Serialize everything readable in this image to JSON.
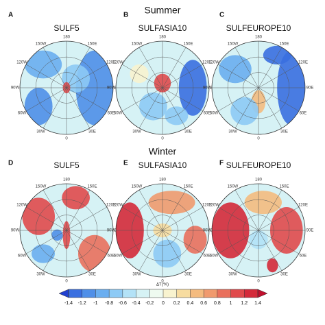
{
  "row_titles": [
    "Summer",
    "Winter"
  ],
  "panels": [
    {
      "letter": "A",
      "title": "SULF5"
    },
    {
      "letter": "B",
      "title": "SULFASIA10"
    },
    {
      "letter": "C",
      "title": "SULFEUROPE10"
    },
    {
      "letter": "D",
      "title": "SULF5"
    },
    {
      "letter": "E",
      "title": "SULFASIA10"
    },
    {
      "letter": "F",
      "title": "SULFEUROPE10"
    }
  ],
  "longitude_labels": [
    "180",
    "150E",
    "120E",
    "90E",
    "60E",
    "30E",
    "0",
    "30W",
    "60W",
    "90W",
    "120W",
    "150W"
  ],
  "colorbar": {
    "label": "ΔT(°K)",
    "ticks": [
      -1.4,
      -1.2,
      -1,
      -0.8,
      -0.6,
      -0.4,
      -0.2,
      0,
      0.2,
      0.4,
      0.6,
      0.8,
      1,
      1.2,
      1.4
    ],
    "colors": [
      "#2140d0",
      "#3a6fe0",
      "#4f8fe8",
      "#6aaef0",
      "#8dcaf5",
      "#b3e2f7",
      "#d6f2f5",
      "#eefaf0",
      "#f8f3cf",
      "#f7dca0",
      "#f4bb7f",
      "#f09a6e",
      "#e9705d",
      "#e04a4c",
      "#d42a3a",
      "#c0102e"
    ]
  }
}
